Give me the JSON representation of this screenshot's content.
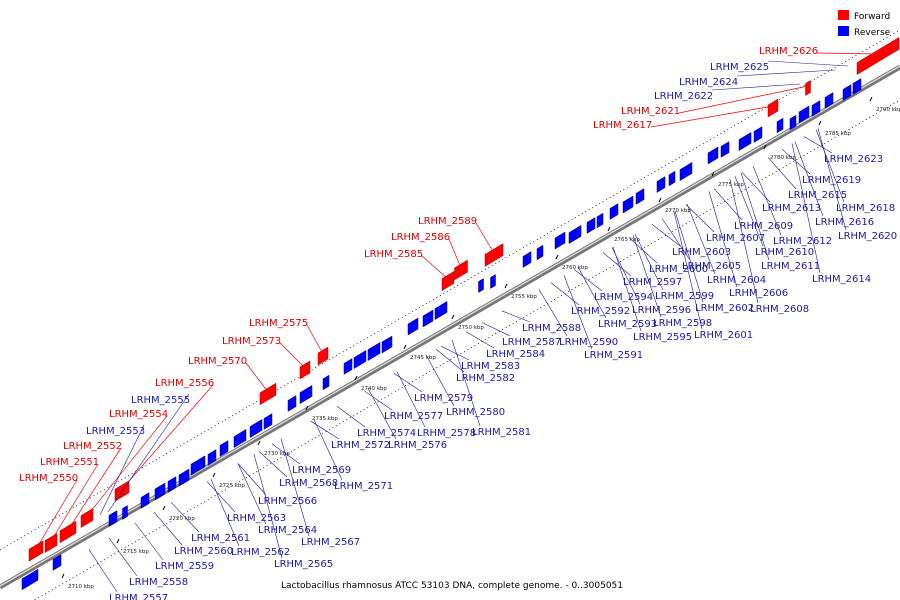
{
  "legend": {
    "forward_label": "Forward",
    "reverse_label": "Reverse",
    "forward_color": "#ff0000",
    "reverse_color": "#0000ff"
  },
  "caption": "Lactobacillus rhamnosus ATCC 53103 DNA, complete genome. - 0..3005051",
  "ticks": [
    "2710 kbp",
    "2715 kbp",
    "2720 kbp",
    "2725 kbp",
    "2730 kbp",
    "2735 kbp",
    "2740 kbp",
    "2745 kbp",
    "2750 kbp",
    "2755 kbp",
    "2760 kbp",
    "2765 kbp",
    "2770 kbp",
    "2775 kbp",
    "2780 kbp",
    "2785 kbp",
    "2790 kbp"
  ],
  "forward_genes": [
    "LRHM_2550",
    "LRHM_2551",
    "LRHM_2552",
    "LRHM_2554",
    "LRHM_2556",
    "LRHM_2570",
    "LRHM_2573",
    "LRHM_2575",
    "LRHM_2585",
    "LRHM_2586",
    "LRHM_2589",
    "LRHM_2617",
    "LRHM_2621",
    "LRHM_2626"
  ],
  "reverse_genes": [
    "LRHM_2553",
    "LRHM_2555",
    "LRHM_2557",
    "LRHM_2558",
    "LRHM_2559",
    "LRHM_2560",
    "LRHM_2561",
    "LRHM_2562",
    "LRHM_2563",
    "LRHM_2564",
    "LRHM_2565",
    "LRHM_2566",
    "LRHM_2567",
    "LRHM_2568",
    "LRHM_2569",
    "LRHM_2571",
    "LRHM_2572",
    "LRHM_2574",
    "LRHM_2576",
    "LRHM_2577",
    "LRHM_2578",
    "LRHM_2579",
    "LRHM_2580",
    "LRHM_2581",
    "LRHM_2582",
    "LRHM_2583",
    "LRHM_2584",
    "LRHM_2587",
    "LRHM_2588",
    "LRHM_2590",
    "LRHM_2591",
    "LRHM_2592",
    "LRHM_2593",
    "LRHM_2594",
    "LRHM_2595",
    "LRHM_2596",
    "LRHM_2597",
    "LRHM_2598",
    "LRHM_2599",
    "LRHM_2600",
    "LRHM_2601",
    "LRHM_2602",
    "LRHM_2603",
    "LRHM_2604",
    "LRHM_2605",
    "LRHM_2606",
    "LRHM_2607",
    "LRHM_2608",
    "LRHM_2609",
    "LRHM_2610",
    "LRHM_2611",
    "LRHM_2612",
    "LRHM_2613",
    "LRHM_2614",
    "LRHM_2615",
    "LRHM_2616",
    "LRHM_2618",
    "LRHM_2619",
    "LRHM_2620",
    "LRHM_2622",
    "LRHM_2623",
    "LRHM_2624",
    "LRHM_2625"
  ]
}
